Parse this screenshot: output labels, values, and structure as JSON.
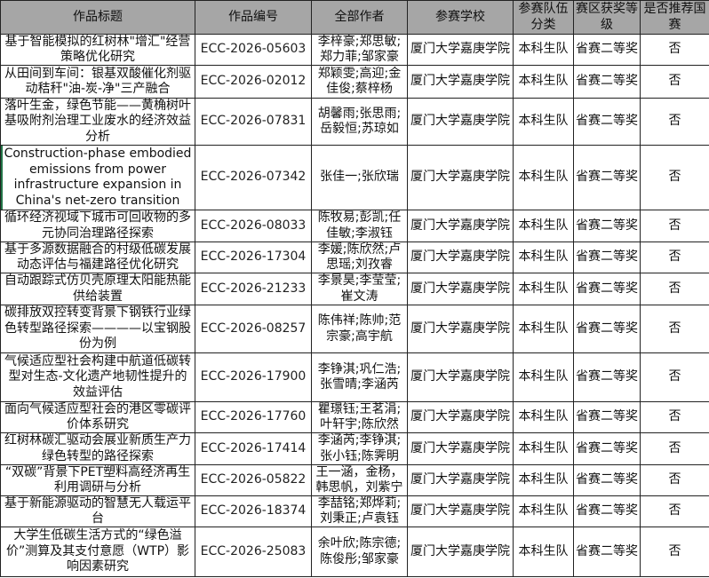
{
  "headers": [
    "作品标题",
    "作品编号",
    "全部作者",
    "参赛学校",
    "参赛队伍分类",
    "赛区获奖等级",
    "是否推荐国赛"
  ],
  "rows": [
    {
      "title": "基于智能模拟的红树林\"增汇\"经营策略优化研究",
      "code": "ECC-2026-05603",
      "authors": "李梓豪;郑思敏;郑力菲;邹家豪",
      "school": "厦门大学嘉庚学院",
      "team": "本科生队",
      "award": "省赛二等奖",
      "recommend": "否"
    },
    {
      "title": "从田间到车间：银基双酸催化剂驱动秸秆\"油-炭-净\"三产融合",
      "code": "ECC-2026-02012",
      "authors": "郑颖雯;高迎;金佳俊;蔡梓杨",
      "school": "厦门大学嘉庚学院",
      "team": "本科生队",
      "award": "省赛二等奖",
      "recommend": "否"
    },
    {
      "title": "落叶生金，绿色节能——黄桷树叶基吸附剂治理工业废水的经济效益分析",
      "code": "ECC-2026-07831",
      "authors": "胡馨雨;张思雨;岳毅恒;苏琼如",
      "school": "厦门大学嘉庚学院",
      "team": "本科生队",
      "award": "省赛二等奖",
      "recommend": "否"
    },
    {
      "title": "Construction-phase embodied emissions from power infrastructure expansion in China's net-zero transition",
      "code": "ECC-2026-07342",
      "authors": "张佳一;张欣瑞",
      "school": "厦门大学嘉庚学院",
      "team": "本科生队",
      "award": "省赛二等奖",
      "recommend": "否"
    },
    {
      "title": "循环经济视域下城市可回收物的多元协同治理路径探索",
      "code": "ECC-2026-08033",
      "authors": "陈牧易;彭凯;任佳敏;李淑钰",
      "school": "厦门大学嘉庚学院",
      "team": "本科生队",
      "award": "省赛二等奖",
      "recommend": "否"
    },
    {
      "title": "基于多源数据融合的村级低碳发展动态评估与福建路径优化研究",
      "code": "ECC-2026-17304",
      "authors": "李媛;陈欣然;卢思瑶;刘孜睿",
      "school": "厦门大学嘉庚学院",
      "team": "本科生队",
      "award": "省赛二等奖",
      "recommend": "否"
    },
    {
      "title": "自动跟踪式仿贝壳原理太阳能热能供给装置",
      "code": "ECC-2026-21233",
      "authors": "李景昊;李莹莹;崔文涛",
      "school": "厦门大学嘉庚学院",
      "team": "本科生队",
      "award": "省赛二等奖",
      "recommend": "否"
    },
    {
      "title": "碳排放双控转变背景下钢铁行业绿色转型路径探索————以宝钢股份为例",
      "code": "ECC-2026-08257",
      "authors": "陈伟祥;陈帅;范宗豪;高宇航",
      "school": "厦门大学嘉庚学院",
      "team": "本科生队",
      "award": "省赛二等奖",
      "recommend": "否"
    },
    {
      "title": "气候适应型社会构建中航道低碳转型对生态-文化遗产地韧性提升的效益评估",
      "code": "ECC-2026-17900",
      "authors": "李铮淇;巩仁浩;张雪晴;李涵芮",
      "school": "厦门大学嘉庚学院",
      "team": "本科生队",
      "award": "省赛二等奖",
      "recommend": "否"
    },
    {
      "title": "面向气候适应型社会的港区零碳评价体系研究",
      "code": "ECC-2026-17760",
      "authors": "瞿璟钰;王茗涓;叶轩宇;陈欣然",
      "school": "厦门大学嘉庚学院",
      "team": "本科生队",
      "award": "省赛二等奖",
      "recommend": "否"
    },
    {
      "title": "红树林碳汇驱动会展业新质生产力绿色转型的路径探索",
      "code": "ECC-2026-17414",
      "authors": "李涵芮;李铮淇;张小钰;陈霁明",
      "school": "厦门大学嘉庚学院",
      "team": "本科生队",
      "award": "省赛二等奖",
      "recommend": "否"
    },
    {
      "title": "“双碳”背景下PET塑料高经济再生利用调研与分析",
      "code": "ECC-2026-05822",
      "authors": "王一涵，金杨，韩思帆，刘紫宁",
      "school": "厦门大学嘉庚学院",
      "team": "本科生队",
      "award": "省赛二等奖",
      "recommend": "否"
    },
    {
      "title": "基于新能源驱动的智慧无人载运平台",
      "code": "ECC-2026-18374",
      "authors": "李喆铭;郑烨莉;刘秉正;卢袁钰",
      "school": "厦门大学嘉庚学院",
      "team": "本科生队",
      "award": "省赛二等奖",
      "recommend": "否"
    },
    {
      "title": "大学生低碳生活方式的“绿色溢价”测算及其支付意愿（WTP）影响因素研究",
      "code": "ECC-2026-25083",
      "authors": "余叶欣;陈宗德;陈俊彤;邹家豪",
      "school": "厦门大学嘉庚学院",
      "team": "本科生队",
      "award": "省赛二等奖",
      "recommend": "否"
    }
  ]
}
